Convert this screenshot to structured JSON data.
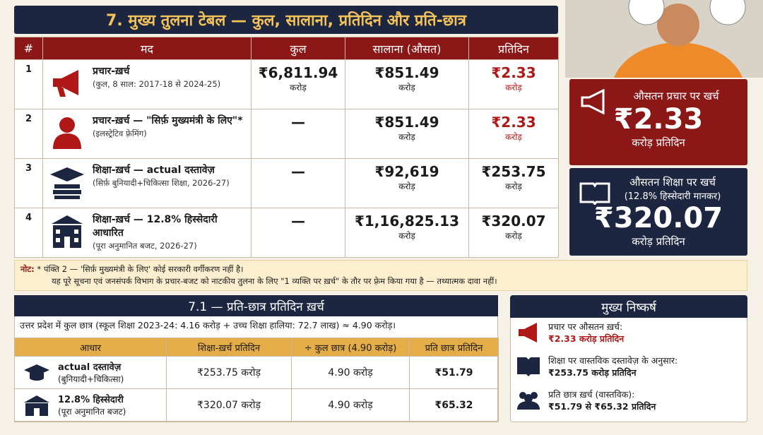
{
  "header": {
    "title": "7. मुख्य तुलना टेबल — कुल, सालाना, प्रतिदिन और प्रति-छात्र"
  },
  "table": {
    "columns": [
      "#",
      "मद",
      "कुल",
      "सालाना (औसत)",
      "प्रतिदिन"
    ],
    "rows": [
      {
        "num": "1",
        "item": "प्रचार-ख़र्च",
        "note": "(कुल, 8 साल: 2017-18 से 2024-25)",
        "total": "₹6,811.94",
        "total_unit": "करोड़",
        "annual": "₹851.49",
        "annual_unit": "करोड़",
        "daily": "₹2.33",
        "daily_unit": "करोड़"
      },
      {
        "num": "2",
        "item": "प्रचार-ख़र्च — \"सिर्फ़ मुख्यमंत्री के लिए\"*",
        "note": "(इलस्ट्रेटिव फ़्रेमिंग)",
        "total": "—",
        "annual": "₹851.49",
        "annual_unit": "करोड़",
        "daily": "₹2.33",
        "daily_unit": "करोड़"
      },
      {
        "num": "3",
        "item": "शिक्षा-ख़र्च — actual दस्तावेज़",
        "note": "(सिर्फ़ बुनियादी+चिकित्सा शिक्षा, 2026-27)",
        "total": "—",
        "annual": "₹92,619",
        "annual_unit": "करोड़",
        "daily": "₹253.75",
        "daily_unit": "करोड़"
      },
      {
        "num": "4",
        "item": "शिक्षा-ख़र्च — 12.8% हिस्सेदारी आधारित",
        "note": "(पूरा अनुमानित बजट, 2026-27)",
        "total": "—",
        "annual": "₹1,16,825.13",
        "annual_unit": "करोड़",
        "daily": "₹320.07",
        "daily_unit": "करोड़"
      }
    ]
  },
  "cards": [
    {
      "title": "औसतन प्रचार पर खर्च",
      "value": "₹2.33",
      "unit": "करोड़ प्रतिदिन"
    },
    {
      "title": "औसतन शिक्षा पर खर्च",
      "subtitle": "(12.8% हिस्सेदारी मानकर)",
      "value": "₹320.07",
      "unit": "करोड़ प्रतिदिन"
    }
  ],
  "note": {
    "label": "नोट:",
    "lines": [
      "* पंक्ति 2 — 'सिर्फ़ मुख्यमंत्री के लिए' कोई सरकारी वर्गीकरण नहीं है।",
      "यह पूरे सूचना एवं जनसंपर्क विभाग के प्रचार-बजट को नाटकीय तुलना के लिए \"1 व्यक्ति पर ख़र्च\" के तौर पर फ़्रेम किया गया है — तथ्यात्मक दावा नहीं।"
    ]
  },
  "per_student": {
    "title": "7.1 — प्रति-छात्र प्रतिदिन ख़र्च",
    "intro": "उत्तर प्रदेश में कुल छात्र (स्कूल शिक्षा 2023-24: 4.16 करोड़ + उच्च शिक्षा हालिया: 72.7 लाख) ≈ 4.90 करोड़।",
    "columns": [
      "आधार",
      "शिक्षा-ख़र्च प्रतिदिन",
      "÷ कुल छात्र (4.90 करोड़)",
      "प्रति छात्र प्रतिदिन"
    ],
    "rows": [
      {
        "basis": "actual दस्तावेज़",
        "basis_note": "(बुनियादी+चिकित्सा)",
        "daily": "₹253.75 करोड़",
        "students": "4.90 करोड़",
        "per_student": "₹51.79"
      },
      {
        "basis": "12.8% हिस्सेदारी",
        "basis_note": "(पूरा अनुमानित बजट)",
        "daily": "₹320.07 करोड़",
        "students": "4.90 करोड़",
        "per_student": "₹65.32"
      }
    ]
  },
  "findings": {
    "title": "मुख्य निष्कर्ष",
    "items": [
      {
        "label": "प्रचार पर औसतन ख़र्च:",
        "value": "₹2.33 करोड़ प्रतिदिन"
      },
      {
        "label": "शिक्षा पर वास्तविक दस्तावेज़ के अनुसार:",
        "value": "₹253.75 करोड़ प्रतिदिन"
      },
      {
        "label": "प्रति छात्र ख़र्च (वास्तविक):",
        "value": "₹51.79 से ₹65.32 प्रतिदिन"
      }
    ]
  }
}
